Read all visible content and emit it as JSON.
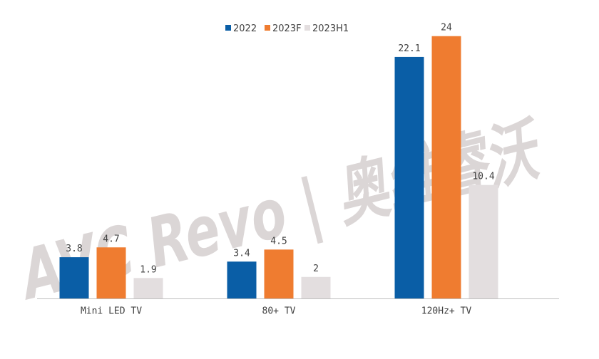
{
  "watermark": {
    "text": "AVC Revo | 奥维睿沃"
  },
  "colors": {
    "2022": "#0a5ea6",
    "2023F": "#ef7c30",
    "2023H1": "#e3dedf",
    "axis": "#bfbfbf",
    "text": "#404040"
  },
  "chart_data": {
    "type": "bar",
    "title": "",
    "xlabel": "",
    "ylabel": "",
    "ylim": [
      0,
      26
    ],
    "grid": false,
    "legend_position": "top",
    "categories": [
      "Mini LED TV",
      "80+ TV",
      "120Hz+ TV"
    ],
    "series": [
      {
        "name": "2022",
        "values": [
          3.8,
          3.4,
          22.1
        ],
        "labels": [
          "3.8",
          "3.4",
          "22.1"
        ]
      },
      {
        "name": "2023F",
        "values": [
          4.7,
          4.5,
          24
        ],
        "labels": [
          "4.7",
          "4.5",
          "24"
        ]
      },
      {
        "name": "2023H1",
        "values": [
          1.9,
          2,
          10.4
        ],
        "labels": [
          "1.9",
          "2",
          "10.4"
        ]
      }
    ]
  }
}
